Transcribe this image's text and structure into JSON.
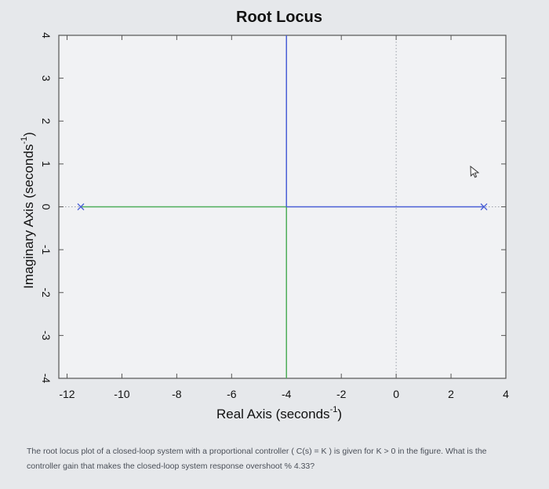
{
  "chart_data": {
    "type": "line",
    "title": "Root Locus",
    "xlabel": "Real Axis (seconds",
    "xlabel_sup": "-1",
    "xlabel_tail": ")",
    "ylabel": "Imaginary Axis (seconds",
    "ylabel_sup": "-1",
    "ylabel_tail": ")",
    "xlim": [
      -12.3,
      4
    ],
    "ylim": [
      -4,
      4
    ],
    "xticks": [
      -12,
      -10,
      -8,
      -6,
      -4,
      -2,
      0,
      2,
      4
    ],
    "xtick_labels": [
      "-12",
      "-10",
      "-8",
      "-6",
      "-4",
      "-2",
      "0",
      "2",
      "4"
    ],
    "yticks": [
      4,
      3,
      2,
      1,
      0,
      -1,
      -2,
      -3,
      -4
    ],
    "ytick_labels": [
      "4",
      "3",
      "2",
      "1",
      "0",
      "-1",
      "-2",
      "-3",
      "-4"
    ],
    "grid": "dotted lines at x = 0 and y = 0",
    "poles": [
      {
        "x": -11.5,
        "y": 0
      },
      {
        "x": 3.2,
        "y": 0
      }
    ],
    "series": [
      {
        "color": "#4fae5a",
        "points": [
          [
            -11.5,
            0
          ],
          [
            -4,
            0
          ]
        ]
      },
      {
        "color": "#4fae5a",
        "points": [
          [
            -4,
            0
          ],
          [
            -4,
            -4
          ]
        ]
      },
      {
        "color": "#4a5fd6",
        "points": [
          [
            3.2,
            0
          ],
          [
            -4,
            0
          ]
        ]
      },
      {
        "color": "#4a5fd6",
        "points": [
          [
            -4,
            0
          ],
          [
            -4,
            4
          ]
        ]
      }
    ],
    "colors": {
      "axes": "#555555",
      "text": "#111111",
      "grid": "#9aa0a8",
      "pole_marker": "#4a5fd6"
    }
  },
  "caption": {
    "line1": "The root locus plot of a closed-loop system with a proportional controller ( C(s) = K ) is given for K > 0 in the figure. What is the",
    "line2": "controller gain that makes the closed-loop system response overshoot % 4.33?"
  },
  "cursor": {
    "icon": "mouse-pointer-icon"
  }
}
